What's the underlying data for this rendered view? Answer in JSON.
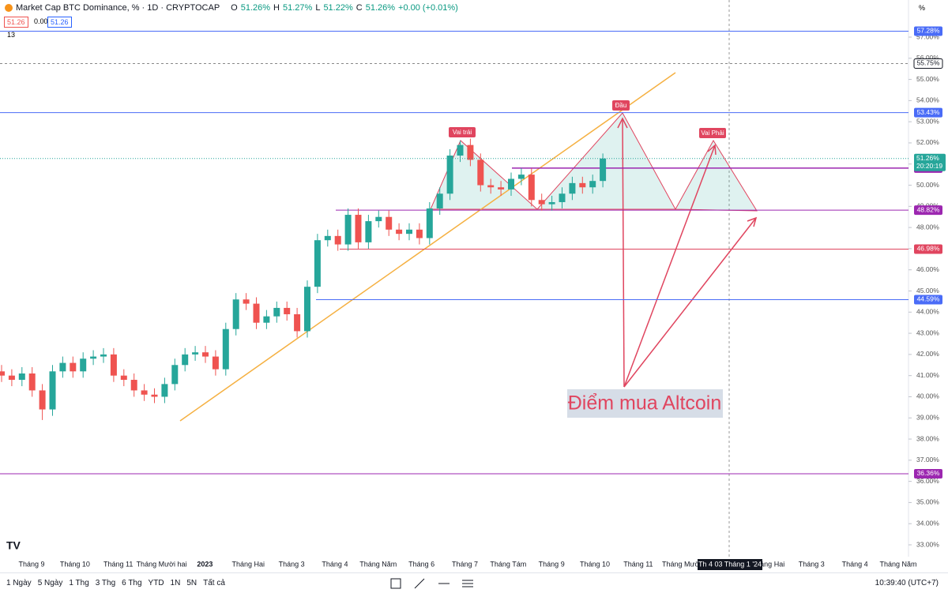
{
  "header": {
    "symbol": "Market Cap BTC Dominance, % · 1D · CRYPTOCAP",
    "ohlc": [
      {
        "key": "O",
        "value": "51.26%"
      },
      {
        "key": "H",
        "value": "51.27%"
      },
      {
        "key": "L",
        "value": "51.22%"
      },
      {
        "key": "C",
        "value": "51.26%"
      }
    ],
    "change": "+0.00 (+0.01%)",
    "bid": "51.26",
    "spread": "0.00",
    "ask": "51.26",
    "indicators": "13",
    "unit": "%"
  },
  "chart_data": {
    "type": "candlestick",
    "up_color": "#26a69a",
    "down_color": "#ef5350",
    "open": [
      41.2,
      41.0,
      40.8,
      41.1,
      40.3,
      39.4,
      41.2,
      41.6,
      41.2,
      41.8,
      41.9,
      42.0,
      41.0,
      40.8,
      40.3,
      40.1,
      40.0,
      40.6,
      41.5,
      42.0,
      42.1,
      41.9,
      41.3,
      43.2,
      44.6,
      44.4,
      43.5,
      43.8,
      44.2,
      43.9,
      43.1,
      45.2,
      47.4,
      47.6,
      47.2,
      48.6,
      47.3,
      48.3,
      48.5,
      47.9,
      47.7,
      47.9,
      47.5,
      48.9,
      49.6,
      51.4,
      51.9,
      51.2,
      50.0,
      49.9,
      49.8,
      50.3,
      50.5,
      49.3,
      49.1,
      49.2,
      49.6,
      50.1,
      49.9,
      50.2
    ],
    "high": [
      41.5,
      41.3,
      41.4,
      41.4,
      40.6,
      41.5,
      41.9,
      41.9,
      42.1,
      42.2,
      42.3,
      42.3,
      41.3,
      41.1,
      40.6,
      40.4,
      40.9,
      41.8,
      42.3,
      42.4,
      42.4,
      42.2,
      43.5,
      44.9,
      44.9,
      44.7,
      44.1,
      44.5,
      44.5,
      44.2,
      45.5,
      47.7,
      47.9,
      47.9,
      48.9,
      48.9,
      48.6,
      48.8,
      48.8,
      48.2,
      48.2,
      48.2,
      49.2,
      49.9,
      51.7,
      52.1,
      52.2,
      51.5,
      50.3,
      50.2,
      50.6,
      50.8,
      50.8,
      49.6,
      49.5,
      49.9,
      50.4,
      50.4,
      50.5,
      51.5
    ],
    "low": [
      40.7,
      40.5,
      40.5,
      40.0,
      38.9,
      39.1,
      40.9,
      40.9,
      40.9,
      41.5,
      41.6,
      40.7,
      40.5,
      40.0,
      39.8,
      39.7,
      39.7,
      40.3,
      41.2,
      41.7,
      41.6,
      41.0,
      41.0,
      42.9,
      44.1,
      43.2,
      43.2,
      43.5,
      43.6,
      42.8,
      42.8,
      44.9,
      47.1,
      46.9,
      46.9,
      47.0,
      47.0,
      48.0,
      47.6,
      47.4,
      47.4,
      47.2,
      47.2,
      48.6,
      49.3,
      51.1,
      50.9,
      49.7,
      49.6,
      49.5,
      49.5,
      50.0,
      49.0,
      48.8,
      48.8,
      48.9,
      49.3,
      49.6,
      49.6,
      49.9
    ],
    "close": [
      41.0,
      40.8,
      41.1,
      40.3,
      39.4,
      41.2,
      41.6,
      41.2,
      41.8,
      41.9,
      42.0,
      41.0,
      40.8,
      40.3,
      40.1,
      40.0,
      40.6,
      41.5,
      42.0,
      42.1,
      41.9,
      41.3,
      43.2,
      44.6,
      44.4,
      43.5,
      43.8,
      44.2,
      43.9,
      43.1,
      45.2,
      47.4,
      47.6,
      47.2,
      48.6,
      47.3,
      48.3,
      48.5,
      47.9,
      47.7,
      47.9,
      47.5,
      48.9,
      49.6,
      51.4,
      51.9,
      51.2,
      50.0,
      49.9,
      49.8,
      50.3,
      50.5,
      49.3,
      49.1,
      49.2,
      49.6,
      50.1,
      49.9,
      50.2,
      51.26
    ],
    "ylim": [
      33,
      57
    ],
    "yticks": [
      {
        "value": 33,
        "label": "33.00%"
      },
      {
        "value": 34,
        "label": "34.00%"
      },
      {
        "value": 35,
        "label": "35.00%"
      },
      {
        "value": 36,
        "label": "36.00%"
      },
      {
        "value": 37,
        "label": "37.00%"
      },
      {
        "value": 38,
        "label": "38.00%"
      },
      {
        "value": 39,
        "label": "39.00%"
      },
      {
        "value": 40,
        "label": "40.00%"
      },
      {
        "value": 41,
        "label": "41.00%"
      },
      {
        "value": 42,
        "label": "42.00%"
      },
      {
        "value": 43,
        "label": "43.00%"
      },
      {
        "value": 44,
        "label": "44.00%"
      },
      {
        "value": 45,
        "label": "45.00%"
      },
      {
        "value": 46,
        "label": "46.00%"
      },
      {
        "value": 47,
        "label": "47.00%"
      },
      {
        "value": 48,
        "label": "48.00%"
      },
      {
        "value": 49,
        "label": "49.00%"
      },
      {
        "value": 50,
        "label": "50.00%"
      },
      {
        "value": 51,
        "label": "51.00%"
      },
      {
        "value": 52,
        "label": "52.00%"
      },
      {
        "value": 53,
        "label": "53.00%"
      },
      {
        "value": 54,
        "label": "54.00%"
      },
      {
        "value": 55,
        "label": "55.00%"
      },
      {
        "value": 56,
        "label": "56.00%"
      },
      {
        "value": 57,
        "label": "57.00%"
      }
    ],
    "x_labels": [
      "Tháng 9",
      "Tháng 10",
      "Tháng 11",
      "Tháng Mười hai",
      "2023",
      "Tháng Hai",
      "Tháng 3",
      "Tháng 4",
      "Tháng Năm",
      "Tháng 6",
      "Tháng 7",
      "Tháng Tám",
      "Tháng 9",
      "Tháng 10",
      "Tháng 11",
      "Tháng Mười",
      null,
      "Tháng Hai",
      "Tháng 3",
      "Tháng 4",
      "Tháng Năm"
    ],
    "crosshair_label": "Th 4 03 Tháng 1 '24",
    "levels": [
      {
        "value": 57.28,
        "label": "57.28%",
        "color": "#4a6cf7"
      },
      {
        "value": 55.75,
        "label": "55.75%",
        "color": "#131722"
      },
      {
        "value": 53.43,
        "label": "53.43%",
        "color": "#4a6cf7"
      },
      {
        "value": 50.81,
        "label": "50.81%",
        "color": "#9c27b0"
      },
      {
        "value": 48.82,
        "label": "48.82%",
        "color": "#9c27b0"
      },
      {
        "value": 46.98,
        "label": "46.98%",
        "color": "#e0455f"
      },
      {
        "value": 44.59,
        "label": "44.59%",
        "color": "#4a6cf7"
      },
      {
        "value": 36.36,
        "label": "36.36%",
        "color": "#9c27b0"
      }
    ],
    "last_price": {
      "value": 51.26,
      "label": "51.26%",
      "countdown": "20:20:19",
      "color": "#26a69a"
    },
    "annotations": {
      "head": "Đầu",
      "left_shoulder": "Vai trái",
      "right_shoulder": "Vai Phải",
      "note": "Điểm mua Altcoin"
    }
  },
  "toolbar": {
    "ranges": [
      "1 Ngày",
      "5 Ngày",
      "1 Thg",
      "3 Thg",
      "6 Thg",
      "YTD",
      "1N",
      "5N",
      "Tất cả"
    ],
    "clock": "10:39:40 (UTC+7)"
  }
}
